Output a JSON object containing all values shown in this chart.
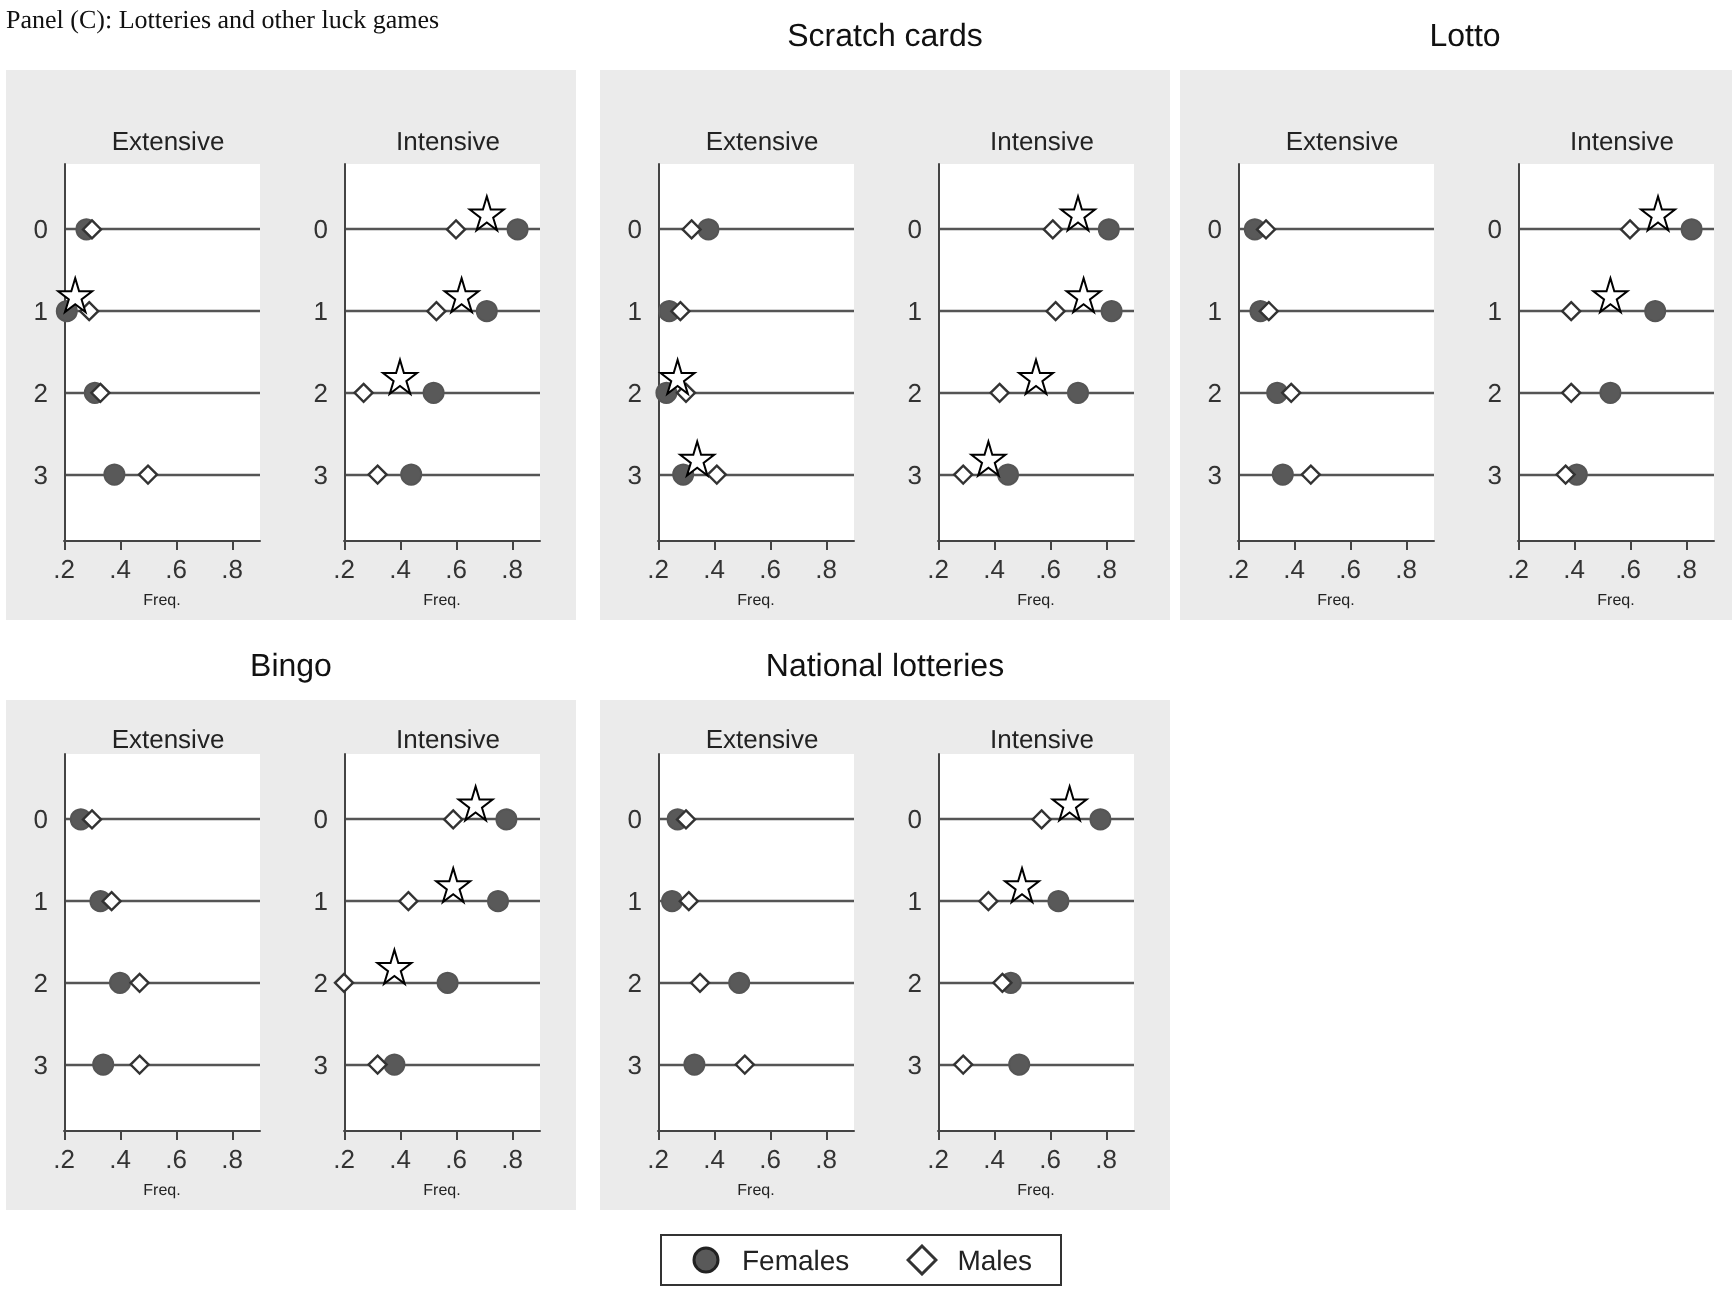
{
  "chart_data": [
    {
      "type": "scatter",
      "subtitle": "Extensive",
      "xlabel": "Freq.",
      "annotations": [
        "Panel (C): Lotteries and other luck games"
      ],
      "orientation": "horizontal",
      "categories": [
        "0",
        "1",
        "2",
        "3"
      ],
      "xlim": [
        0.2,
        0.9
      ],
      "xticks": [
        {
          "value": 0.2,
          "label": ".2"
        },
        {
          "value": 0.4,
          "label": ".4"
        },
        {
          "value": 0.6,
          "label": ".6"
        },
        {
          "value": 0.8,
          "label": ".8"
        }
      ],
      "grid": "y",
      "series": [
        {
          "color": "#595959",
          "marker": "circle",
          "values": [
            0.28,
            0.21,
            0.31,
            0.38
          ]
        },
        {
          "color": "#333333",
          "marker": "diamond",
          "values": [
            0.3,
            0.29,
            0.33,
            0.5
          ]
        },
        {
          "color": "#ffffff",
          "marker": "star",
          "values": [
            null,
            0.24,
            null,
            null
          ]
        }
      ]
    },
    {
      "type": "scatter",
      "subtitle": "Intensive",
      "xlabel": "Freq.",
      "orientation": "horizontal",
      "categories": [
        "0",
        "1",
        "2",
        "3"
      ],
      "xlim": [
        0.2,
        0.9
      ],
      "xticks": [
        {
          "value": 0.2,
          "label": ".2"
        },
        {
          "value": 0.4,
          "label": ".4"
        },
        {
          "value": 0.6,
          "label": ".6"
        },
        {
          "value": 0.8,
          "label": ".8"
        }
      ],
      "grid": "y",
      "series": [
        {
          "color": "#595959",
          "marker": "circle",
          "values": [
            0.82,
            0.71,
            0.52,
            0.44
          ]
        },
        {
          "color": "#333333",
          "marker": "diamond",
          "values": [
            0.6,
            0.53,
            0.27,
            0.32
          ]
        },
        {
          "color": "#ffffff",
          "marker": "star",
          "values": [
            0.71,
            0.62,
            0.4,
            null
          ]
        }
      ]
    },
    {
      "type": "scatter",
      "title": "Scratch cards",
      "subtitle": "Extensive",
      "xlabel": "Freq.",
      "orientation": "horizontal",
      "categories": [
        "0",
        "1",
        "2",
        "3"
      ],
      "xlim": [
        0.2,
        0.9
      ],
      "xticks": [
        {
          "value": 0.2,
          "label": ".2"
        },
        {
          "value": 0.4,
          "label": ".4"
        },
        {
          "value": 0.6,
          "label": ".6"
        },
        {
          "value": 0.8,
          "label": ".8"
        }
      ],
      "grid": "y",
      "series": [
        {
          "color": "#595959",
          "marker": "circle",
          "values": [
            0.38,
            0.24,
            0.23,
            0.29
          ]
        },
        {
          "color": "#333333",
          "marker": "diamond",
          "values": [
            0.32,
            0.28,
            0.3,
            0.41
          ]
        },
        {
          "color": "#ffffff",
          "marker": "star",
          "values": [
            null,
            null,
            0.27,
            0.34
          ]
        }
      ]
    },
    {
      "type": "scatter",
      "subtitle": "Intensive",
      "xlabel": "Freq.",
      "orientation": "horizontal",
      "categories": [
        "0",
        "1",
        "2",
        "3"
      ],
      "xlim": [
        0.2,
        0.9
      ],
      "xticks": [
        {
          "value": 0.2,
          "label": ".2"
        },
        {
          "value": 0.4,
          "label": ".4"
        },
        {
          "value": 0.6,
          "label": ".6"
        },
        {
          "value": 0.8,
          "label": ".8"
        }
      ],
      "grid": "y",
      "series": [
        {
          "color": "#595959",
          "marker": "circle",
          "values": [
            0.81,
            0.82,
            0.7,
            0.45
          ]
        },
        {
          "color": "#333333",
          "marker": "diamond",
          "values": [
            0.61,
            0.62,
            0.42,
            0.29
          ]
        },
        {
          "color": "#ffffff",
          "marker": "star",
          "values": [
            0.7,
            0.72,
            0.55,
            0.38
          ]
        }
      ]
    },
    {
      "type": "scatter",
      "title": "Lotto",
      "subtitle": "Extensive",
      "xlabel": "Freq.",
      "orientation": "horizontal",
      "categories": [
        "0",
        "1",
        "2",
        "3"
      ],
      "xlim": [
        0.2,
        0.9
      ],
      "xticks": [
        {
          "value": 0.2,
          "label": ".2"
        },
        {
          "value": 0.4,
          "label": ".4"
        },
        {
          "value": 0.6,
          "label": ".6"
        },
        {
          "value": 0.8,
          "label": ".8"
        }
      ],
      "grid": "y",
      "series": [
        {
          "color": "#595959",
          "marker": "circle",
          "values": [
            0.26,
            0.28,
            0.34,
            0.36
          ]
        },
        {
          "color": "#333333",
          "marker": "diamond",
          "values": [
            0.3,
            0.31,
            0.39,
            0.46
          ]
        }
      ]
    },
    {
      "type": "scatter",
      "subtitle": "Intensive",
      "xlabel": "Freq.",
      "orientation": "horizontal",
      "categories": [
        "0",
        "1",
        "2",
        "3"
      ],
      "xlim": [
        0.2,
        0.9
      ],
      "xticks": [
        {
          "value": 0.2,
          "label": ".2"
        },
        {
          "value": 0.4,
          "label": ".4"
        },
        {
          "value": 0.6,
          "label": ".6"
        },
        {
          "value": 0.8,
          "label": ".8"
        }
      ],
      "grid": "y",
      "series": [
        {
          "color": "#595959",
          "marker": "circle",
          "values": [
            0.82,
            0.69,
            0.53,
            0.41
          ]
        },
        {
          "color": "#333333",
          "marker": "diamond",
          "values": [
            0.6,
            0.39,
            0.39,
            0.37
          ]
        },
        {
          "color": "#ffffff",
          "marker": "star",
          "values": [
            0.7,
            0.53,
            null,
            null
          ]
        }
      ]
    },
    {
      "type": "scatter",
      "title": "Bingo",
      "subtitle": "Extensive",
      "xlabel": "Freq.",
      "orientation": "horizontal",
      "categories": [
        "0",
        "1",
        "2",
        "3"
      ],
      "xlim": [
        0.2,
        0.9
      ],
      "xticks": [
        {
          "value": 0.2,
          "label": ".2"
        },
        {
          "value": 0.4,
          "label": ".4"
        },
        {
          "value": 0.6,
          "label": ".6"
        },
        {
          "value": 0.8,
          "label": ".8"
        }
      ],
      "grid": "y",
      "series": [
        {
          "color": "#595959",
          "marker": "circle",
          "values": [
            0.26,
            0.33,
            0.4,
            0.34
          ]
        },
        {
          "color": "#333333",
          "marker": "diamond",
          "values": [
            0.3,
            0.37,
            0.47,
            0.47
          ]
        }
      ]
    },
    {
      "type": "scatter",
      "subtitle": "Intensive",
      "xlabel": "Freq.",
      "orientation": "horizontal",
      "categories": [
        "0",
        "1",
        "2",
        "3"
      ],
      "xlim": [
        0.2,
        0.9
      ],
      "xticks": [
        {
          "value": 0.2,
          "label": ".2"
        },
        {
          "value": 0.4,
          "label": ".4"
        },
        {
          "value": 0.6,
          "label": ".6"
        },
        {
          "value": 0.8,
          "label": ".8"
        }
      ],
      "grid": "y",
      "series": [
        {
          "color": "#595959",
          "marker": "circle",
          "values": [
            0.78,
            0.75,
            0.57,
            0.38
          ]
        },
        {
          "color": "#333333",
          "marker": "diamond",
          "values": [
            0.59,
            0.43,
            0.2,
            0.32
          ]
        },
        {
          "color": "#ffffff",
          "marker": "star",
          "values": [
            0.67,
            0.59,
            0.38,
            null
          ]
        }
      ]
    },
    {
      "type": "scatter",
      "title": "National lotteries",
      "subtitle": "Extensive",
      "xlabel": "Freq.",
      "orientation": "horizontal",
      "categories": [
        "0",
        "1",
        "2",
        "3"
      ],
      "xlim": [
        0.2,
        0.9
      ],
      "xticks": [
        {
          "value": 0.2,
          "label": ".2"
        },
        {
          "value": 0.4,
          "label": ".4"
        },
        {
          "value": 0.6,
          "label": ".6"
        },
        {
          "value": 0.8,
          "label": ".8"
        }
      ],
      "grid": "y",
      "series": [
        {
          "color": "#595959",
          "marker": "circle",
          "values": [
            0.27,
            0.25,
            0.49,
            0.33
          ]
        },
        {
          "color": "#333333",
          "marker": "diamond",
          "values": [
            0.3,
            0.31,
            0.35,
            0.51
          ]
        }
      ]
    },
    {
      "type": "scatter",
      "subtitle": "Intensive",
      "xlabel": "Freq.",
      "legend": "bottom",
      "orientation": "horizontal",
      "categories": [
        "0",
        "1",
        "2",
        "3"
      ],
      "xlim": [
        0.2,
        0.9
      ],
      "xticks": [
        {
          "value": 0.2,
          "label": ".2"
        },
        {
          "value": 0.4,
          "label": ".4"
        },
        {
          "value": 0.6,
          "label": ".6"
        },
        {
          "value": 0.8,
          "label": ".8"
        }
      ],
      "grid": "y",
      "series": [
        {
          "name": "Females",
          "color": "#595959",
          "marker": "circle",
          "values": [
            0.78,
            0.63,
            0.46,
            0.49
          ]
        },
        {
          "name": "Males",
          "color": "#333333",
          "marker": "diamond",
          "values": [
            0.57,
            0.38,
            0.43,
            0.29
          ]
        },
        {
          "color": "#ffffff",
          "marker": "star",
          "values": [
            0.67,
            0.5,
            null,
            null
          ]
        }
      ]
    }
  ]
}
